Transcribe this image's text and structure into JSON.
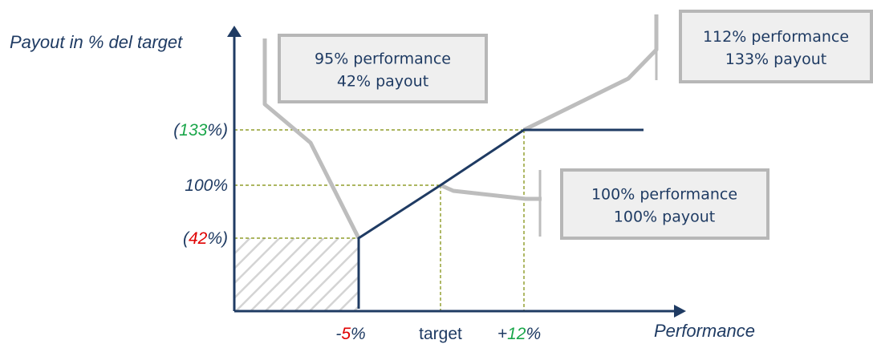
{
  "chart_data": {
    "type": "line",
    "xlabel": "Performance",
    "ylabel": "Payout in % del target",
    "x_ticks": [
      {
        "x": 95,
        "pre": "-",
        "num": "5",
        "post": "%",
        "num_color": "#e00000",
        "color": "#1f3b63"
      },
      {
        "x": 100,
        "pre": "",
        "num": "target",
        "post": "",
        "num_color": "#1f3b63",
        "color": "#1f3b63"
      },
      {
        "x": 112,
        "pre": "+",
        "num": "12",
        "post": "%",
        "num_color": "#1aa64a",
        "color": "#1f3b63"
      }
    ],
    "y_ticks": [
      {
        "y": 133,
        "pre": "(",
        "num": "133",
        "post": "%)",
        "num_color": "#1aa64a"
      },
      {
        "y": 100,
        "pre": "",
        "num": "100%",
        "post": "",
        "num_color": "#1f3b63"
      },
      {
        "y": 42,
        "pre": "(",
        "num": "42",
        "post": "%)",
        "num_color": "#e00000"
      }
    ],
    "series": [
      {
        "values": [
          [
            95,
            0
          ],
          [
            95,
            42
          ],
          [
            100,
            100
          ],
          [
            112,
            133
          ],
          [
            117,
            133
          ]
        ],
        "color": "#1f3b63"
      }
    ],
    "xlim": [
      87,
      117
    ],
    "ylim": [
      0,
      133
    ],
    "shaded_region": {
      "x": [
        87,
        95
      ],
      "y": [
        0,
        42
      ],
      "pattern": "diagonal-hatch"
    },
    "guides": "dashed-olive",
    "callouts": [
      {
        "lines": [
          "95% performance",
          "42% payout"
        ],
        "anchor": [
          95,
          42
        ]
      },
      {
        "lines": [
          "112% performance",
          "133% payout"
        ],
        "anchor": [
          112,
          133
        ]
      },
      {
        "lines": [
          "100% performance",
          "100% payout"
        ],
        "anchor": [
          100,
          100
        ]
      }
    ]
  },
  "colors": {
    "axis": "#1f3b63",
    "line": "#1f3b63",
    "guide": "#7a8a00",
    "callout_fill": "#efefef",
    "callout_border": "#b7b7b7",
    "leader": "#bdbdbd"
  }
}
